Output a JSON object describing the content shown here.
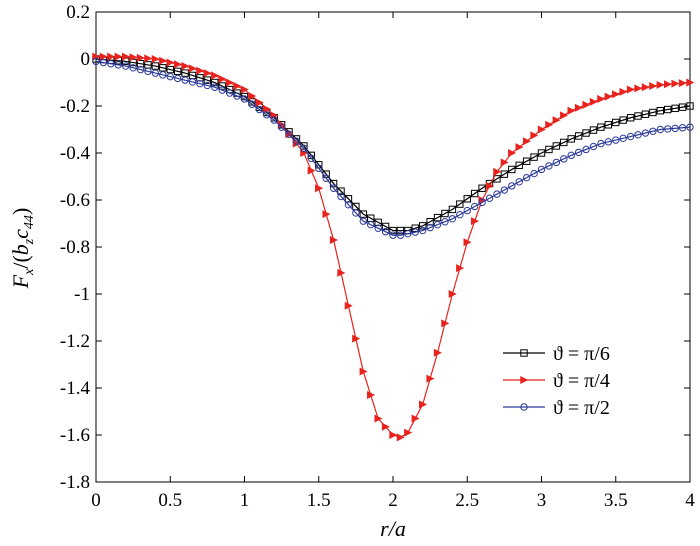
{
  "chart_data": {
    "type": "line",
    "title": "",
    "xlabel_parts": {
      "main": "r/a"
    },
    "ylabel_parts": {
      "f": "F",
      "fsub": "x",
      "open": "/(",
      "b": "b",
      "bsub": "z",
      "c": "c",
      "csub": "44",
      "close": ")"
    },
    "xlim": [
      0,
      4
    ],
    "ylim": [
      -1.8,
      0.2
    ],
    "xticks": [
      0,
      0.5,
      1,
      1.5,
      2,
      2.5,
      3,
      3.5,
      4
    ],
    "xtick_labels": [
      "0",
      "0.5",
      "1",
      "1.5",
      "2",
      "2.5",
      "3",
      "3.5",
      "4"
    ],
    "yticks": [
      0.2,
      0,
      -0.2,
      -0.4,
      -0.6,
      -0.8,
      -1,
      -1.2,
      -1.4,
      -1.6,
      -1.8
    ],
    "ytick_labels": [
      "0.2",
      "0",
      "-0.2",
      "-0.4",
      "-0.6",
      "-0.8",
      "-1",
      "-1.2",
      "-1.4",
      "-1.6",
      "-1.8"
    ],
    "grid": false,
    "legend_position": "lower-right",
    "series": [
      {
        "name": "ϑ = π/6",
        "color": "#000000",
        "marker": "square",
        "x": [
          0,
          0.2,
          0.4,
          0.6,
          0.8,
          1.0,
          1.2,
          1.4,
          1.6,
          1.8,
          2.0,
          2.1,
          2.2,
          2.4,
          2.6,
          2.8,
          3.0,
          3.2,
          3.4,
          3.6,
          3.8,
          4.0
        ],
        "y": [
          0,
          -0.01,
          -0.03,
          -0.06,
          -0.1,
          -0.16,
          -0.25,
          -0.37,
          -0.53,
          -0.66,
          -0.73,
          -0.73,
          -0.71,
          -0.64,
          -0.55,
          -0.47,
          -0.4,
          -0.34,
          -0.29,
          -0.25,
          -0.22,
          -0.2
        ]
      },
      {
        "name": "ϑ = π/4",
        "color": "#e8231e",
        "marker": "triangle-right",
        "x": [
          0,
          0.2,
          0.4,
          0.6,
          0.8,
          1.0,
          1.2,
          1.4,
          1.5,
          1.6,
          1.7,
          1.8,
          1.9,
          2.0,
          2.05,
          2.1,
          2.2,
          2.3,
          2.4,
          2.5,
          2.6,
          2.7,
          2.8,
          3.0,
          3.2,
          3.4,
          3.6,
          3.8,
          4.0
        ],
        "y": [
          0.01,
          0.01,
          0,
          -0.03,
          -0.07,
          -0.13,
          -0.24,
          -0.4,
          -0.55,
          -0.77,
          -1.05,
          -1.33,
          -1.53,
          -1.6,
          -1.61,
          -1.59,
          -1.47,
          -1.25,
          -1.0,
          -0.78,
          -0.6,
          -0.48,
          -0.4,
          -0.3,
          -0.22,
          -0.17,
          -0.13,
          -0.11,
          -0.1
        ]
      },
      {
        "name": "ϑ = π/2",
        "color": "#2b3a9a",
        "marker": "circle",
        "x": [
          0,
          0.2,
          0.4,
          0.6,
          0.8,
          1.0,
          1.2,
          1.4,
          1.6,
          1.8,
          2.0,
          2.05,
          2.2,
          2.4,
          2.6,
          2.8,
          3.0,
          3.2,
          3.4,
          3.6,
          3.8,
          4.0
        ],
        "y": [
          -0.01,
          -0.03,
          -0.06,
          -0.09,
          -0.12,
          -0.17,
          -0.26,
          -0.38,
          -0.55,
          -0.69,
          -0.75,
          -0.75,
          -0.73,
          -0.68,
          -0.61,
          -0.54,
          -0.47,
          -0.41,
          -0.36,
          -0.33,
          -0.3,
          -0.29
        ]
      }
    ]
  }
}
